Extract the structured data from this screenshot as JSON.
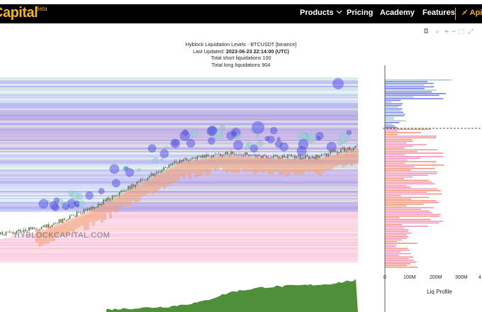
{
  "nav": {
    "brand": "Capital",
    "brand_badge": "Beta",
    "items": [
      {
        "label": "Products",
        "has_dropdown": true
      },
      {
        "label": "Pricing"
      },
      {
        "label": "Academy"
      },
      {
        "label": "Features"
      }
    ],
    "api_label": "Api",
    "accent_color": "#f0b232"
  },
  "toolbar": {
    "icons": [
      "camera-icon",
      "zoom-icon",
      "zoom-in-icon",
      "zoom-out-icon",
      "box-select-icon",
      "autoscale-icon"
    ]
  },
  "chart_header": {
    "title": "Hyblock Liquidation Levels - BTCUSDT [binance]",
    "updated_prefix": "Last Updated:",
    "updated_value": "2023-06-23 22:14:00 (UTC)",
    "short_liq": "Total short liquidations 100",
    "long_liq": "Total long liquidations 904"
  },
  "watermark": "HYBLOCKCAPITAL.COM",
  "chart_data": [
    {
      "type": "scatter",
      "title": "Hyblock Liquidation Levels - BTCUSDT [binance]",
      "series_colors": {
        "short_levels": "#3b3bd9",
        "long_levels": "#f07ab0",
        "price": "#222222",
        "volume": "#4f8f3a"
      },
      "price_trend": [
        0.0,
        0.05,
        0.18,
        0.35,
        0.52,
        0.57,
        0.55,
        0.54,
        0.62
      ],
      "volume_trend": [
        0.0,
        0.05,
        0.1,
        0.25,
        0.6,
        0.75,
        0.8,
        0.85,
        1.0
      ]
    },
    {
      "type": "bar",
      "title": "Liq Profile",
      "orientation": "horizontal",
      "xlabel": "Liq Profile",
      "x_ticks": [
        "0",
        "100M",
        "200M",
        "300M",
        "4"
      ],
      "xlim": [
        0,
        400
      ]
    }
  ]
}
